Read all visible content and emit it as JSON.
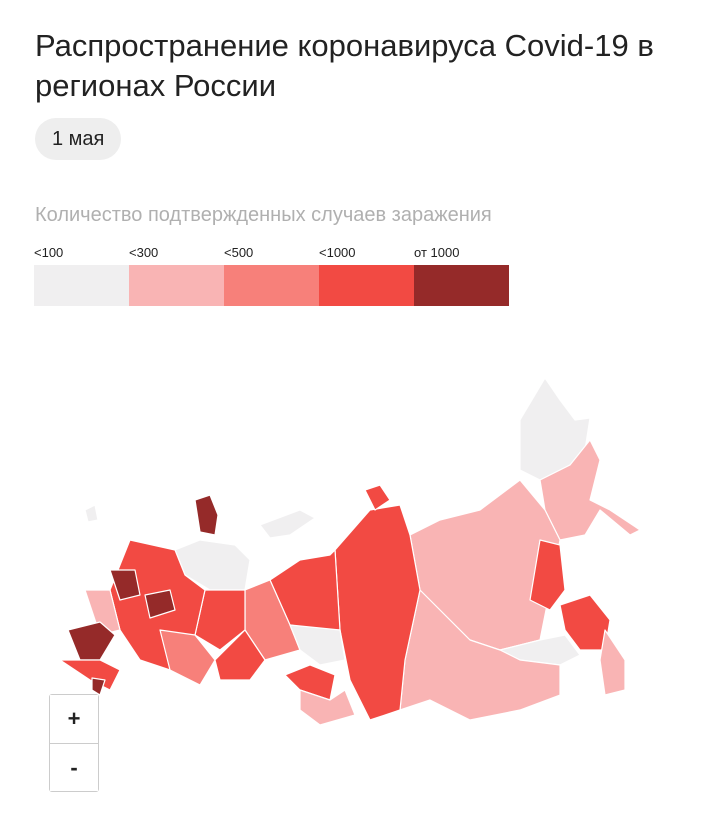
{
  "header": {
    "title": "Распространение коронавируса Covid-19 в регионах России",
    "date": "1 мая"
  },
  "legend": {
    "title": "Количество подтвержденных случаев заражения",
    "items": [
      {
        "label": "<100",
        "color": "#f0eff0"
      },
      {
        "label": "<300",
        "color": "#f9b4b4"
      },
      {
        "label": "<500",
        "color": "#f7807a"
      },
      {
        "label": "<1000",
        "color": "#f24a43"
      },
      {
        "label": "от 1000",
        "color": "#952a29"
      }
    ]
  },
  "zoom": {
    "in": "+",
    "out": "-"
  }
}
